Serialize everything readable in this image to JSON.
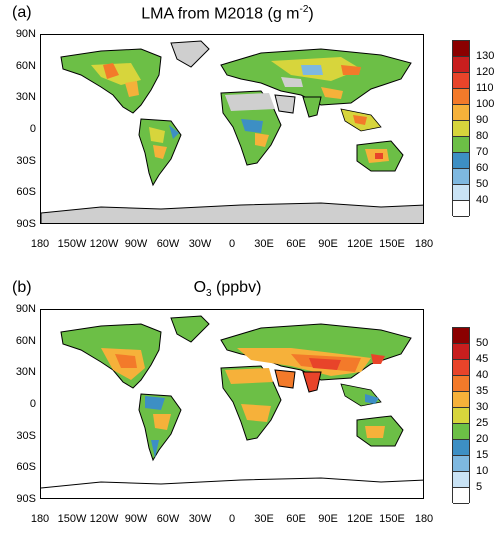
{
  "panel_a": {
    "tag": "(a)",
    "title_main": "LMA from M2018 (g m",
    "title_sup": "-2",
    "title_end": ")",
    "colorbar_labels": [
      "130",
      "120",
      "110",
      "100",
      "90",
      "80",
      "70",
      "60",
      "50",
      "40"
    ],
    "colorbar_colors": [
      "#8b0000",
      "#c81e1e",
      "#e8442a",
      "#f37a2a",
      "#f6b13a",
      "#d7d53c",
      "#6cbf46",
      "#3d8fc4",
      "#7eb8e0",
      "#c9e3f5",
      "#ffffff"
    ]
  },
  "panel_b": {
    "tag": "(b)",
    "title_main": "O",
    "title_sub": "3",
    "title_end": "  (ppbv)",
    "colorbar_labels": [
      "50",
      "45",
      "40",
      "35",
      "30",
      "25",
      "20",
      "15",
      "10",
      "5"
    ],
    "colorbar_colors": [
      "#8b0000",
      "#c81e1e",
      "#e8442a",
      "#f37a2a",
      "#f6b13a",
      "#d7d53c",
      "#6cbf46",
      "#3d8fc4",
      "#7eb8e0",
      "#c9e3f5",
      "#ffffff"
    ]
  },
  "lat_labels": [
    "90N",
    "60N",
    "30N",
    "0",
    "30S",
    "60S",
    "90S"
  ],
  "lon_labels": [
    "180",
    "150W",
    "120W",
    "90W",
    "60W",
    "30W",
    "0",
    "30E",
    "60E",
    "90E",
    "120E",
    "150E",
    "180"
  ],
  "chart_data": [
    {
      "type": "heatmap",
      "title": "LMA from M2018 (g m-2)",
      "projection": "cylindrical equidistant",
      "xlim": [
        -180,
        180
      ],
      "ylim": [
        -90,
        90
      ],
      "colorbar_levels": [
        40,
        50,
        60,
        70,
        80,
        90,
        100,
        110,
        120,
        130
      ],
      "missing_regions": [
        "Greenland",
        "Sahara",
        "Arabian Peninsula",
        "Antarctica"
      ]
    },
    {
      "type": "heatmap",
      "title": "O3 (ppbv)",
      "projection": "cylindrical equidistant",
      "xlim": [
        -180,
        180
      ],
      "ylim": [
        -90,
        90
      ],
      "colorbar_levels": [
        5,
        10,
        15,
        20,
        25,
        30,
        35,
        40,
        45,
        50
      ]
    }
  ]
}
